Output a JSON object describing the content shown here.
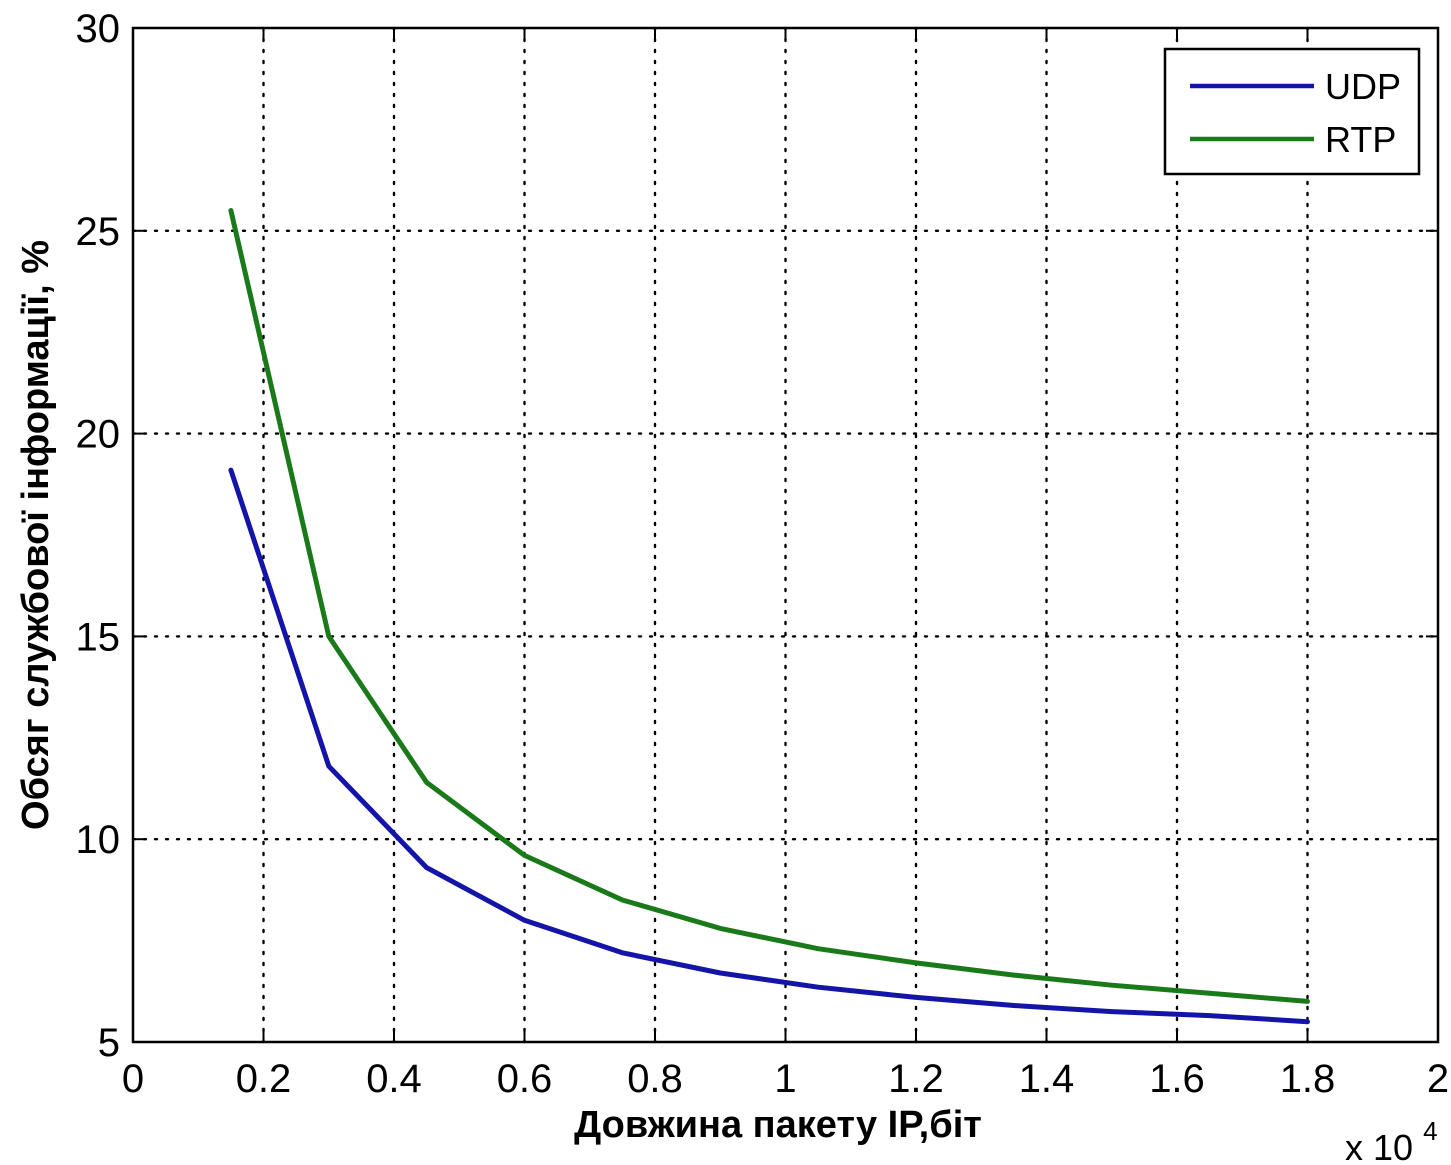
{
  "chart_data": {
    "type": "line",
    "title": "",
    "xlabel": "Довжина пакету IP,біт",
    "ylabel": "Обсяг службової інформації, %",
    "x_multiplier": {
      "base": "x 10",
      "exponent": "4"
    },
    "xlim": [
      0,
      2
    ],
    "ylim": [
      5,
      30
    ],
    "xticks": [
      "0",
      "0.2",
      "0.4",
      "0.6",
      "0.8",
      "1",
      "1.2",
      "1.4",
      "1.6",
      "1.8",
      "2"
    ],
    "yticks": [
      "5",
      "10",
      "15",
      "20",
      "25",
      "30"
    ],
    "grid": true,
    "legend_position": "top-right",
    "x": [
      0.15,
      0.3,
      0.45,
      0.6,
      0.75,
      0.9,
      1.05,
      1.2,
      1.35,
      1.5,
      1.65,
      1.8
    ],
    "series": [
      {
        "name": "UDP",
        "color": "#1414a8",
        "values": [
          19.1,
          11.8,
          9.3,
          8.0,
          7.2,
          6.7,
          6.35,
          6.1,
          5.9,
          5.75,
          5.65,
          5.5
        ]
      },
      {
        "name": "RTP",
        "color": "#1a7a1a",
        "values": [
          25.5,
          15.0,
          11.4,
          9.6,
          8.5,
          7.8,
          7.3,
          6.95,
          6.65,
          6.4,
          6.2,
          6.0
        ]
      }
    ]
  }
}
